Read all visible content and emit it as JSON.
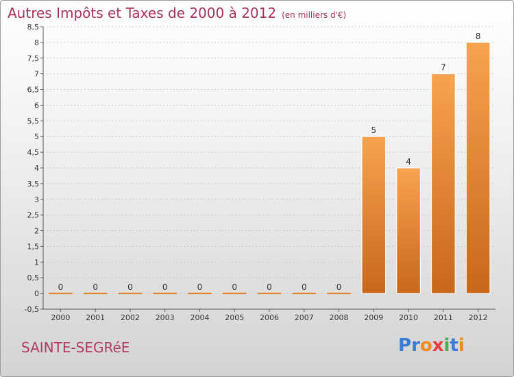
{
  "title": "Autres Impôts et Taxes de 2000 à 2012",
  "unit": "(en milliers d'€)",
  "commune": "SAINTE-SEGRéE",
  "logo": {
    "text": "Proxiti",
    "letters": [
      "P",
      "r",
      "o",
      "x",
      "i",
      "t",
      "i"
    ],
    "colors": [
      "#3a7bd5",
      "#3a7bd5",
      "#f08a1c",
      "#e83c3c",
      "#4cae4c",
      "#3a7bd5",
      "#f08a1c"
    ]
  },
  "colors": {
    "bar": "#e67e22",
    "title": "#a8325a",
    "commune": "#b03a63"
  },
  "chart_data": {
    "type": "bar",
    "categories": [
      "2000",
      "2001",
      "2002",
      "2003",
      "2004",
      "2005",
      "2006",
      "2007",
      "2008",
      "2009",
      "2010",
      "2011",
      "2012"
    ],
    "values": [
      0,
      0,
      0,
      0,
      0,
      0,
      0,
      0,
      0,
      5,
      4,
      7,
      8
    ],
    "data_labels": [
      "0",
      "0",
      "0",
      "0",
      "0",
      "0",
      "0",
      "0",
      "0",
      "5",
      "4",
      "7",
      "8"
    ],
    "y_ticks": [
      "-0,5",
      "0",
      "0,5",
      "1",
      "1,5",
      "2",
      "2,5",
      "3",
      "3,5",
      "4",
      "4,5",
      "5",
      "5,5",
      "6",
      "6,5",
      "7",
      "7,5",
      "8",
      "8,5"
    ],
    "ylim": [
      -0.5,
      8.5
    ],
    "grid": true
  }
}
